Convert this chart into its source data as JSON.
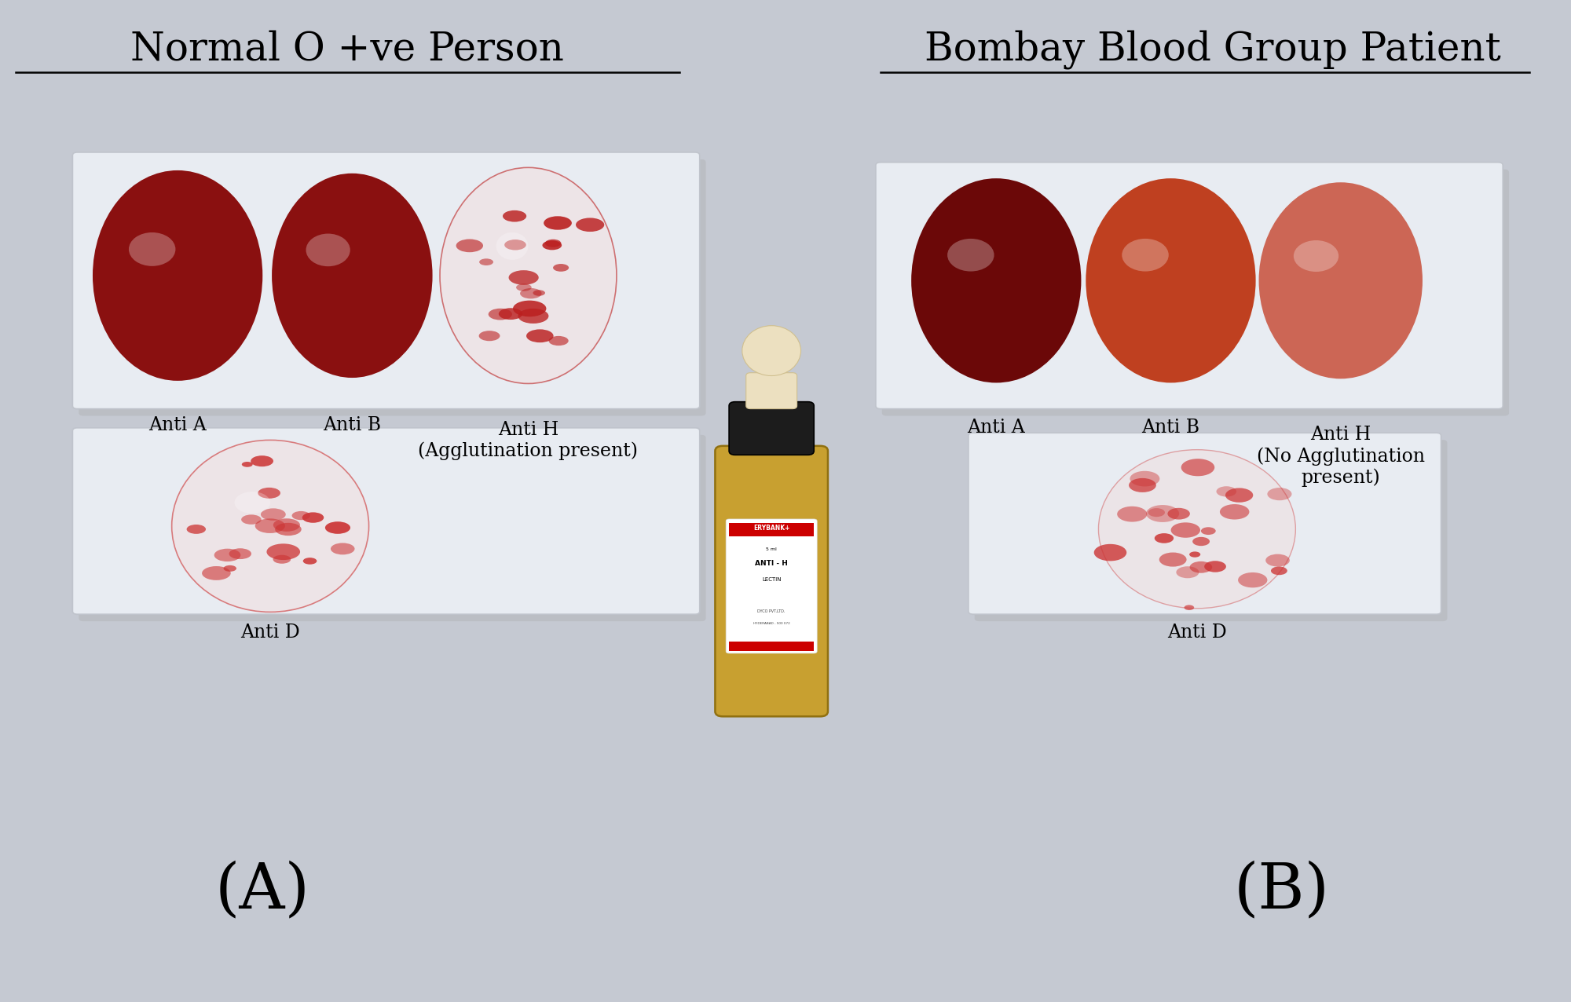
{
  "bg_color": "#c5c9d2",
  "title_left": "Normal O +ve Person",
  "title_right": "Bombay Blood Group Patient",
  "title_fontsize": 36,
  "label_fontsize": 17,
  "panel_label_fontsize": 58,
  "panel_label_left": "(A)",
  "panel_label_right": "(B)"
}
